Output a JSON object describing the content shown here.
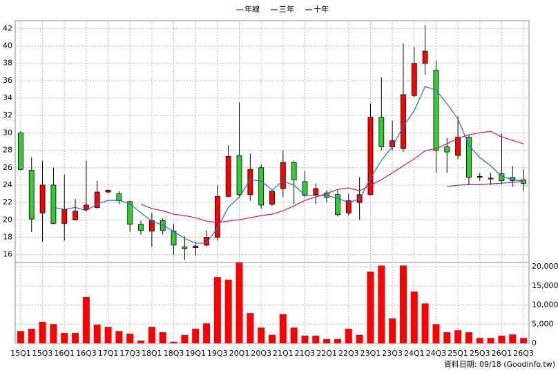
{
  "chart_data": [
    {
      "type": "candlestick",
      "legend": "top",
      "up_color": "#ff0000",
      "down_color": "#33cc33",
      "open": [
        30.0,
        25.7,
        20.8,
        24.0,
        19.6,
        20.0,
        21.2,
        21.4,
        23.2,
        23.0,
        22.1,
        19.5,
        18.7,
        19.9,
        18.7,
        16.9,
        16.8,
        17.1,
        18.0,
        22.7,
        27.4,
        22.9,
        26.0,
        21.8,
        23.6,
        26.6,
        24.4,
        22.9,
        23.1,
        22.9,
        20.8,
        22.0,
        22.9,
        31.8,
        28.4,
        28.2,
        34.3,
        38.0,
        37.2,
        28.4,
        27.4,
        29.5,
        24.9,
        24.8,
        25.3,
        24.9,
        24.6
      ],
      "high": [
        30.2,
        27.2,
        26.8,
        26.0,
        25.2,
        22.4,
        26.8,
        24.5,
        23.5,
        23.3,
        22.2,
        19.9,
        20.8,
        20.2,
        19.5,
        18.1,
        17.5,
        18.8,
        24.0,
        28.6,
        33.5,
        27.6,
        26.4,
        23.4,
        28.0,
        26.8,
        25.6,
        24.2,
        23.4,
        23.4,
        23.0,
        24.9,
        33.4,
        36.4,
        31.4,
        40.3,
        39.9,
        42.4,
        38.3,
        29.4,
        31.9,
        29.8,
        25.4,
        25.4,
        29.9,
        26.2,
        25.8
      ],
      "low": [
        25.7,
        18.6,
        17.5,
        19.5,
        17.6,
        20.0,
        21.0,
        21.4,
        23.0,
        21.8,
        18.6,
        18.3,
        16.9,
        18.3,
        16.0,
        15.4,
        15.9,
        16.9,
        17.6,
        22.6,
        22.6,
        22.2,
        21.3,
        21.6,
        22.6,
        21.8,
        22.6,
        21.8,
        22.0,
        20.4,
        20.5,
        20.0,
        22.9,
        28.0,
        28.0,
        27.8,
        34.1,
        36.7,
        25.4,
        25.4,
        27.0,
        24.0,
        24.5,
        24.0,
        24.1,
        23.8,
        23.3
      ],
      "close": [
        25.8,
        20.1,
        24.0,
        19.6,
        21.2,
        21.0,
        21.7,
        23.2,
        23.4,
        22.2,
        19.5,
        18.8,
        19.9,
        18.8,
        17.1,
        16.7,
        17.0,
        18.0,
        22.7,
        27.3,
        22.9,
        25.8,
        21.7,
        23.3,
        26.6,
        24.6,
        22.8,
        23.6,
        22.6,
        20.6,
        22.2,
        22.9,
        31.8,
        28.4,
        29.1,
        34.4,
        38.0,
        39.4,
        28.0,
        27.8,
        29.5,
        24.9,
        25.0,
        24.7,
        24.5,
        24.5,
        24.2
      ],
      "ylim": [
        15.1,
        42.9
      ],
      "yticks": [
        16,
        18,
        20,
        22,
        24,
        26,
        28,
        30,
        32,
        34,
        36,
        38,
        40,
        42
      ],
      "grid": true,
      "series": [
        {
          "name": "年線",
          "color": "#1a6fd6",
          "values": [
            null,
            null,
            null,
            21.44,
            21.21,
            21.44,
            21.05,
            21.84,
            22.24,
            22.24,
            21.84,
            20.81,
            19.86,
            19.38,
            18.67,
            17.87,
            17.32,
            17.32,
            19.06,
            21.44,
            22.63,
            24.62,
            24.46,
            23.43,
            24.46,
            23.98,
            22.87,
            22.79,
            22.79,
            22.48,
            22.0,
            22.4,
            24.78,
            26.84,
            28.43,
            30.73,
            32.56,
            35.33,
            34.94,
            33.35,
            31.6,
            28.59,
            27.16,
            26.21,
            25.02,
            24.62,
            24.46
          ]
        },
        {
          "name": "三年",
          "color": "#d6145a",
          "values": [
            null,
            null,
            null,
            null,
            null,
            null,
            null,
            null,
            null,
            null,
            null,
            21.8,
            21.3,
            21.05,
            20.65,
            20.49,
            20.25,
            19.86,
            19.7,
            19.86,
            20.02,
            20.25,
            20.49,
            20.65,
            21.05,
            21.6,
            22.24,
            22.63,
            23.03,
            23.51,
            23.67,
            23.35,
            23.98,
            24.62,
            25.41,
            26.21,
            27.0,
            27.95,
            28.19,
            28.75,
            29.38,
            29.78,
            30.02,
            30.17,
            29.54,
            29.14,
            28.75
          ]
        },
        {
          "name": "十年",
          "color": "#7a1fa2",
          "values": [
            null,
            null,
            null,
            null,
            null,
            null,
            null,
            null,
            null,
            null,
            null,
            null,
            null,
            null,
            null,
            null,
            null,
            null,
            null,
            null,
            null,
            null,
            null,
            null,
            null,
            null,
            null,
            null,
            null,
            null,
            null,
            null,
            null,
            null,
            null,
            null,
            null,
            null,
            null,
            23.83,
            23.98,
            24.06,
            24.06,
            24.14,
            24.22,
            24.3,
            24.46
          ]
        }
      ]
    },
    {
      "type": "bar",
      "color": "#ff0000",
      "categories": [
        "15Q1",
        null,
        "15Q3",
        null,
        "16Q1",
        null,
        "16Q3",
        null,
        "17Q1",
        null,
        "17Q3",
        null,
        "18Q1",
        null,
        "18Q3",
        null,
        "19Q1",
        null,
        "19Q3",
        null,
        "20Q1",
        null,
        "20Q3",
        null,
        "21Q1",
        null,
        "21Q3",
        null,
        "22Q1",
        null,
        "22Q3",
        null,
        "23Q1",
        null,
        "23Q3",
        null,
        "24Q1",
        null,
        "24Q3",
        null,
        "25Q1",
        null,
        "25Q3",
        null,
        "26Q1",
        null,
        "26Q3"
      ],
      "values": [
        3200,
        3800,
        5600,
        5000,
        2700,
        2700,
        12100,
        4900,
        4300,
        3200,
        2500,
        700,
        4300,
        2900,
        400,
        2200,
        3800,
        5200,
        17300,
        16600,
        21100,
        7900,
        4100,
        2200,
        7600,
        4100,
        2000,
        2000,
        1100,
        1100,
        3800,
        2200,
        18700,
        20300,
        6500,
        20300,
        13500,
        10400,
        5000,
        2900,
        3400,
        2900,
        1400,
        1400,
        2000,
        2300,
        1400
      ],
      "ylim": [
        0,
        21100
      ],
      "yticks": [
        0,
        {
          "value": 5000,
          "label": "5,000"
        },
        {
          "value": 10000,
          "label": "10,000"
        },
        {
          "value": 15000,
          "label": "15,000"
        },
        {
          "value": 20000,
          "label": "20,000"
        }
      ],
      "grid": true
    }
  ],
  "footer": "資料日期: 09/18 (Goodinfo.tw)"
}
